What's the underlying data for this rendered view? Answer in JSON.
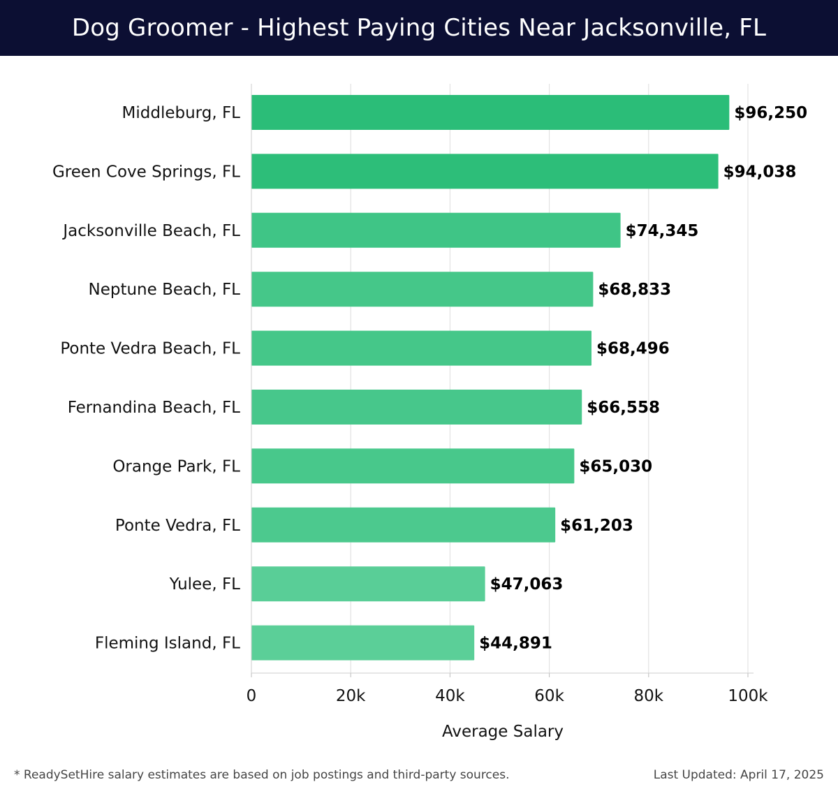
{
  "header": {
    "title": "Dog Groomer - Highest Paying Cities Near Jacksonville, FL"
  },
  "footer": {
    "note": "* ReadySetHire salary estimates are based on job postings and third-party sources.",
    "updated": "Last Updated: April 17, 2025"
  },
  "colors": {
    "header_bg": "#0c0f33",
    "bar_high": "#2bbd78",
    "bar_low": "#5bcf98",
    "grid": "#dddddd",
    "label": "#111111"
  },
  "chart_data": {
    "type": "bar",
    "orientation": "horizontal",
    "title": "Dog Groomer - Highest Paying Cities Near Jacksonville, FL",
    "xlabel": "Average Salary",
    "ylabel": "",
    "xlim": [
      0,
      100000
    ],
    "xticks": [
      0,
      20000,
      40000,
      60000,
      80000,
      100000
    ],
    "xtick_labels": [
      "0",
      "20k",
      "40k",
      "60k",
      "80k",
      "100k"
    ],
    "grid": true,
    "categories": [
      "Middleburg, FL",
      "Green Cove Springs, FL",
      "Jacksonville Beach, FL",
      "Neptune Beach, FL",
      "Ponte Vedra Beach, FL",
      "Fernandina Beach, FL",
      "Orange Park, FL",
      "Ponte Vedra, FL",
      "Yulee, FL",
      "Fleming Island, FL"
    ],
    "values": [
      96250,
      94038,
      74345,
      68833,
      68496,
      66558,
      65030,
      61203,
      47063,
      44891
    ],
    "data_labels": [
      "$96,250",
      "$94,038",
      "$74,345",
      "$68,833",
      "$68,496",
      "$66,558",
      "$65,030",
      "$61,203",
      "$47,063",
      "$44,891"
    ]
  }
}
